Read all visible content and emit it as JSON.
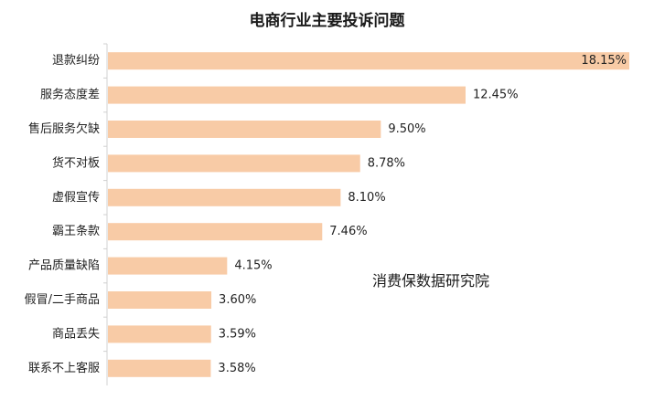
{
  "chart_data": {
    "type": "bar",
    "orientation": "horizontal",
    "title": "电商行业主要投诉问题",
    "categories": [
      "退款纠纷",
      "服务态度差",
      "售后服务欠缺",
      "货不对板",
      "虚假宣传",
      "霸王条款",
      "产品质量缺陷",
      "假冒/二手商品",
      "商品丢失",
      "联系不上客服"
    ],
    "values": [
      18.15,
      12.45,
      9.5,
      8.78,
      8.1,
      7.46,
      4.15,
      3.6,
      3.59,
      3.58
    ],
    "value_labels": [
      "18.15%",
      "12.45%",
      "9.50%",
      "8.78%",
      "8.10%",
      "7.46%",
      "4.15%",
      "3.60%",
      "3.59%",
      "3.58%"
    ],
    "xlim": [
      0,
      18.15
    ],
    "bar_color": "#f8cba6",
    "grid": false,
    "legend": "none"
  },
  "watermark": "消费保数据研究院"
}
